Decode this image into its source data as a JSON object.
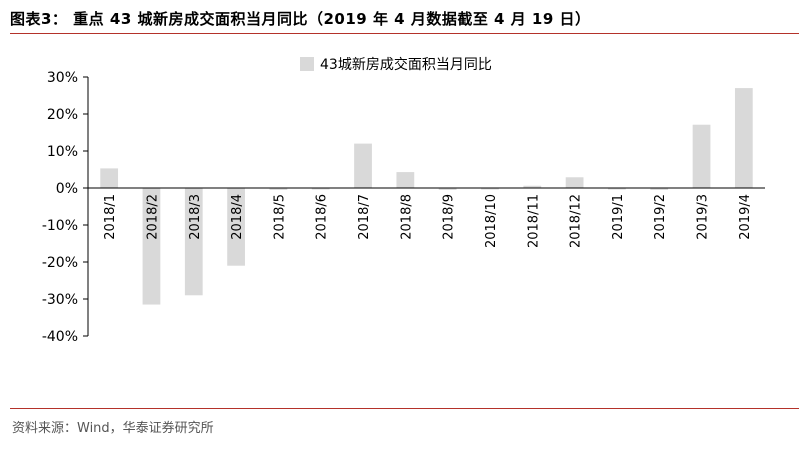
{
  "figure": {
    "title": "图表3： 重点 43 城新房成交面积当月同比（2019 年 4 月数据截至 4 月 19 日）",
    "source": "资料来源：Wind，华泰证券研究所"
  },
  "colors": {
    "bar": "#d9d9d9",
    "rule": "#b4322a",
    "axis": "#000000"
  },
  "chart_data": {
    "type": "bar",
    "title": "",
    "xlabel": "",
    "ylabel": "",
    "ylim": [
      -0.4,
      0.3
    ],
    "yticks": [
      0.3,
      0.2,
      0.1,
      0.0,
      -0.1,
      -0.2,
      -0.3,
      -0.4
    ],
    "ytick_labels": [
      "30%",
      "20%",
      "10%",
      "0%",
      "-10%",
      "-20%",
      "-30%",
      "-40%"
    ],
    "categories": [
      "2018/1",
      "2018/2",
      "2018/3",
      "2018/4",
      "2018/5",
      "2018/6",
      "2018/7",
      "2018/8",
      "2018/9",
      "2018/10",
      "2018/11",
      "2018/12",
      "2019/1",
      "2019/2",
      "2019/3",
      "2019/4"
    ],
    "series": [
      {
        "name": "43城新房成交面积当月同比",
        "values": [
          0.053,
          -0.315,
          -0.29,
          -0.21,
          -0.005,
          -0.004,
          0.12,
          0.043,
          -0.005,
          -0.004,
          0.006,
          0.029,
          -0.004,
          -0.005,
          0.171,
          0.27
        ]
      }
    ],
    "grid": false,
    "legend": "top-center"
  }
}
